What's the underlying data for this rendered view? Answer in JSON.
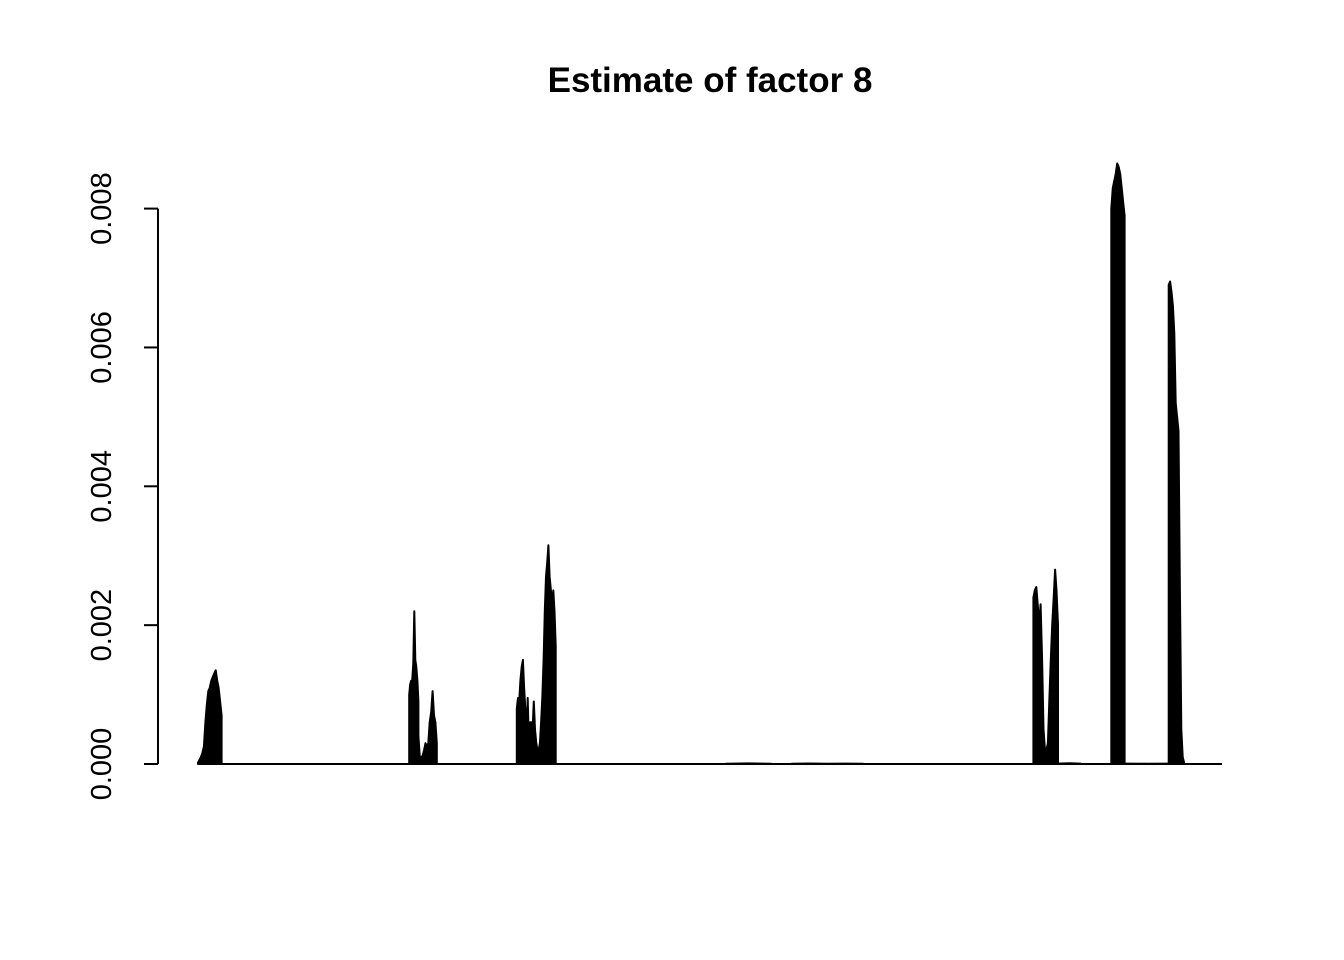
{
  "chart_data": {
    "type": "line",
    "title": "Estimate of factor 8",
    "xlabel": "",
    "ylabel": "",
    "x_axis_shown": false,
    "ylim": [
      0,
      0.0087
    ],
    "xlim": [
      1,
      1000
    ],
    "y_ticks": [
      0,
      0.002,
      0.004,
      0.006,
      0.008
    ],
    "y_tick_labels": [
      "0.000",
      "0.002",
      "0.004",
      "0.006",
      "0.008"
    ],
    "line_color": "#000000",
    "grid": false,
    "baseline": 0,
    "peaks": [
      {
        "x_start": 1,
        "x_end": 24,
        "values": [
          2e-05,
          6e-05,
          0.0001,
          0.00016,
          0.00025,
          0.0006,
          0.00085,
          0.00105,
          0.0011,
          0.0012,
          0.00125,
          0.0013,
          0.00135,
          0.0012,
          0.0011,
          0.0009,
          0.0007
        ]
      },
      {
        "x_start": 207,
        "x_end": 216,
        "values": [
          0.001,
          0.00115,
          0.0012,
          0.0012,
          0.00145,
          0.0022,
          0.0015,
          0.0014,
          0.0012,
          0.0009
        ]
      },
      {
        "x_start": 216,
        "x_end": 234,
        "values": [
          0.0004,
          0.0001,
          0.0001,
          0.00012,
          0.0002,
          0.0003,
          0.00025,
          0.0003,
          0.0006,
          0.00075,
          0.00105,
          0.0007,
          0.0006,
          0.0003
        ]
      },
      {
        "x_start": 312,
        "x_end": 350,
        "values": [
          0.0008,
          0.00095,
          0.0009,
          0.0012,
          0.0014,
          0.0015,
          0.0011,
          0.0008,
          0.0004,
          0.00095,
          0.0002,
          0.0006,
          0.0006,
          0.0005,
          0.0009,
          0.0005,
          0.0003,
          0.0002,
          0.0002,
          0.0003,
          0.0006,
          0.00095,
          0.0015,
          0.0022,
          0.0027,
          0.0029,
          0.00315,
          0.0027,
          0.0025,
          0.0023,
          0.0025,
          0.0022,
          0.0017
        ]
      },
      {
        "x_start": 516,
        "x_end": 560,
        "values": [
          5e-06,
          8e-06,
          5e-06
        ]
      },
      {
        "x_start": 580,
        "x_end": 650,
        "values": [
          4e-06,
          7e-06,
          4e-06,
          6e-06,
          4e-06
        ]
      },
      {
        "x_start": 816,
        "x_end": 840,
        "values": [
          0.0024,
          0.0025,
          0.00255,
          0.0023,
          0.002,
          0.0023,
          0.0015,
          0.0005,
          0.0002,
          0.0002,
          0.0003,
          0.0009,
          0.0015,
          0.002,
          0.0024,
          0.0028,
          0.0025,
          0.002
        ]
      },
      {
        "x_start": 840,
        "x_end": 862,
        "values": [
          6e-06,
          1e-05,
          6e-06
        ]
      },
      {
        "x_start": 892,
        "x_end": 905,
        "values": [
          0.008,
          0.0083,
          0.0084,
          0.0085,
          0.00865,
          0.0086,
          0.0085,
          0.0083,
          0.0081,
          0.0079
        ]
      },
      {
        "x_start": 905,
        "x_end": 948,
        "values": [
          6e-06,
          4e-06,
          6e-06
        ]
      },
      {
        "x_start": 948,
        "x_end": 963,
        "values": [
          0.0069,
          0.00695,
          0.0068,
          0.0066,
          0.0062,
          0.0052,
          0.005,
          0.0048,
          0.0025,
          0.0005,
          0.0001,
          2e-05
        ]
      }
    ]
  }
}
